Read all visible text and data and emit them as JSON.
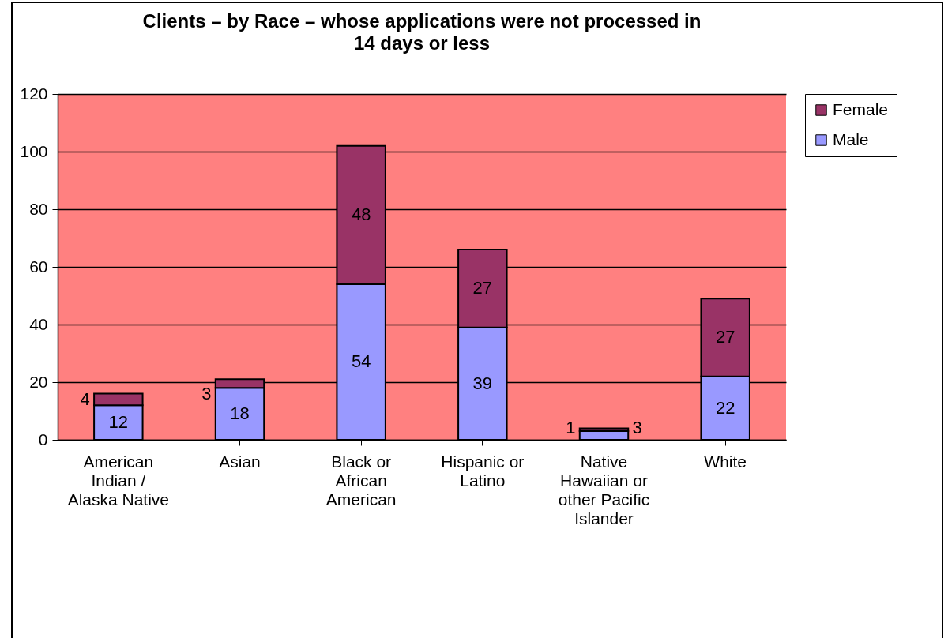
{
  "chart_data": {
    "type": "bar",
    "title": "Clients – by Race – whose applications were not processed in 14 days or less",
    "categories": [
      "American Indian / Alaska Native",
      "Asian",
      "Black or African American",
      "Hispanic or Latino",
      "Native Hawaiian or other Pacific Islander",
      "White"
    ],
    "series": [
      {
        "name": "Male",
        "color": "#9999ff",
        "values": [
          12,
          18,
          54,
          39,
          3,
          22
        ]
      },
      {
        "name": "Female",
        "color": "#993366",
        "values": [
          4,
          3,
          48,
          27,
          1,
          27
        ]
      }
    ],
    "stacked": true,
    "ylim": [
      0,
      120
    ],
    "yticks": [
      0,
      20,
      40,
      60,
      80,
      100,
      120
    ],
    "grid": "y",
    "legend": "right",
    "data_labels": true
  }
}
